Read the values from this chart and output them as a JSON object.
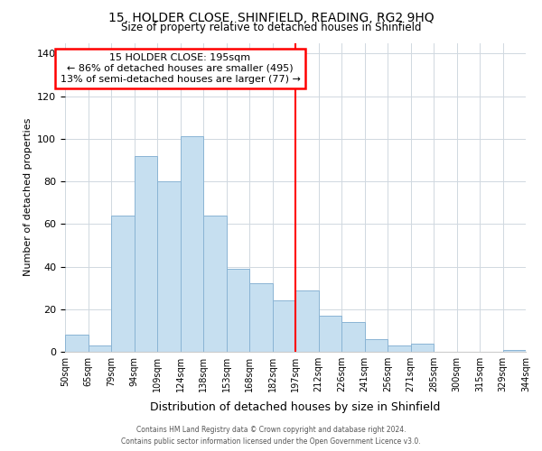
{
  "title": "15, HOLDER CLOSE, SHINFIELD, READING, RG2 9HQ",
  "subtitle": "Size of property relative to detached houses in Shinfield",
  "xlabel": "Distribution of detached houses by size in Shinfield",
  "ylabel": "Number of detached properties",
  "footer_line1": "Contains HM Land Registry data © Crown copyright and database right 2024.",
  "footer_line2": "Contains public sector information licensed under the Open Government Licence v3.0.",
  "bin_labels": [
    "50sqm",
    "65sqm",
    "79sqm",
    "94sqm",
    "109sqm",
    "124sqm",
    "138sqm",
    "153sqm",
    "168sqm",
    "182sqm",
    "197sqm",
    "212sqm",
    "226sqm",
    "241sqm",
    "256sqm",
    "271sqm",
    "285sqm",
    "300sqm",
    "315sqm",
    "329sqm",
    "344sqm"
  ],
  "bar_heights": [
    8,
    3,
    64,
    92,
    80,
    101,
    64,
    39,
    32,
    24,
    29,
    17,
    14,
    6,
    3,
    4,
    0,
    0,
    0,
    1
  ],
  "bar_color": "#c6dff0",
  "bar_edge_color": "#8ab4d4",
  "vline_color": "red",
  "annotation_title": "15 HOLDER CLOSE: 195sqm",
  "annotation_line1": "← 86% of detached houses are smaller (495)",
  "annotation_line2": "13% of semi-detached houses are larger (77) →",
  "annotation_box_color": "white",
  "annotation_box_edge": "red",
  "ylim": [
    0,
    145
  ],
  "yticks": [
    0,
    20,
    40,
    60,
    80,
    100,
    120,
    140
  ],
  "vline_bar_index": 10
}
